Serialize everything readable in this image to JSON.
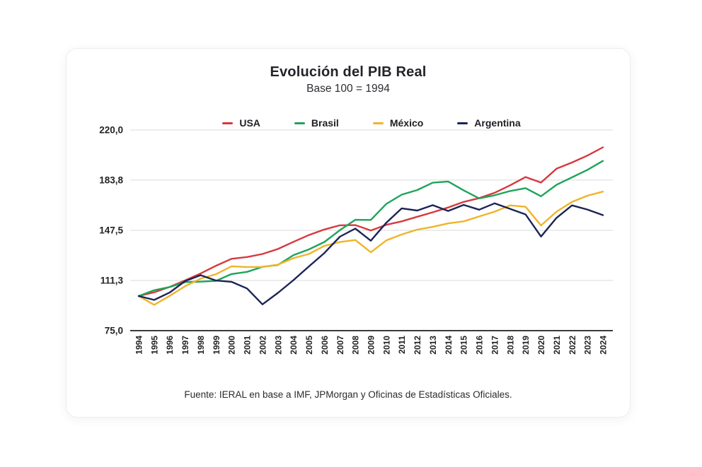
{
  "chart": {
    "title": "Evolución del PIB Real",
    "subtitle": "Base 100 = 1994",
    "source": "Fuente: IERAL en base a IMF, JPMorgan y Oficinas de Estadísticas Oficiales."
  },
  "chart_data": {
    "type": "line",
    "title": "Evolución del PIB Real",
    "subtitle": "Base 100 = 1994",
    "source": "Fuente: IERAL en base a IMF, JPMorgan y Oficinas de Estadísticas Oficiales.",
    "xlabel": "",
    "ylabel": "",
    "grid": "horizontal-only",
    "legend_position": "top",
    "ylim": [
      75,
      220
    ],
    "y_ticks": [
      {
        "value": 75.0,
        "label": "75,0"
      },
      {
        "value": 111.3,
        "label": "111,3"
      },
      {
        "value": 147.5,
        "label": "147,5"
      },
      {
        "value": 183.8,
        "label": "183,8"
      },
      {
        "value": 220.0,
        "label": "220,0"
      }
    ],
    "x": [
      1994,
      1995,
      1996,
      1997,
      1998,
      1999,
      2000,
      2001,
      2002,
      2003,
      2004,
      2005,
      2006,
      2007,
      2008,
      2009,
      2010,
      2011,
      2012,
      2013,
      2014,
      2015,
      2016,
      2017,
      2018,
      2019,
      2020,
      2021,
      2022,
      2023,
      2024
    ],
    "series": [
      {
        "name": "USA",
        "color": "#d6393e",
        "values": [
          100.0,
          102.7,
          106.6,
          111.3,
          116.3,
          121.9,
          126.9,
          128.2,
          130.4,
          134.0,
          139.2,
          144.1,
          148.1,
          151.1,
          151.3,
          147.4,
          151.5,
          154.0,
          157.3,
          160.5,
          164.0,
          168.0,
          170.8,
          174.6,
          180.0,
          186.0,
          182.0,
          192.0,
          196.5,
          201.5,
          207.5
        ]
      },
      {
        "name": "Brasil",
        "color": "#1ea45a",
        "values": [
          100.0,
          104.2,
          106.5,
          110.1,
          110.4,
          111.0,
          115.9,
          117.5,
          121.1,
          122.5,
          129.6,
          133.7,
          139.1,
          147.6,
          155.1,
          155.0,
          166.6,
          173.3,
          176.6,
          181.9,
          182.8,
          176.4,
          170.6,
          172.8,
          175.9,
          178.0,
          172.1,
          180.4,
          185.8,
          191.2,
          197.7
        ]
      },
      {
        "name": "México",
        "color": "#f0b429",
        "values": [
          100.0,
          93.7,
          100.1,
          107.1,
          112.6,
          115.8,
          121.5,
          121.0,
          121.0,
          122.7,
          127.4,
          130.4,
          136.2,
          139.0,
          140.5,
          131.6,
          140.2,
          144.5,
          148.0,
          150.0,
          152.5,
          154.0,
          157.5,
          161.0,
          165.5,
          164.5,
          151.0,
          161.0,
          168.0,
          172.5,
          175.5
        ]
      },
      {
        "name": "Argentina",
        "color": "#1b2455",
        "values": [
          100.0,
          97.2,
          102.5,
          110.8,
          115.1,
          111.2,
          110.3,
          105.5,
          94.0,
          102.3,
          111.5,
          121.4,
          131.1,
          142.9,
          148.8,
          140.0,
          153.0,
          163.4,
          161.8,
          165.7,
          161.5,
          165.9,
          162.4,
          167.0,
          163.0,
          159.0,
          143.0,
          156.5,
          165.5,
          162.5,
          158.5
        ]
      }
    ],
    "style": {
      "grid_color": "#d9d9d9",
      "axis_color": "#1f1f1f",
      "tick_label_color": "#232327",
      "line_width": 2.4
    }
  }
}
